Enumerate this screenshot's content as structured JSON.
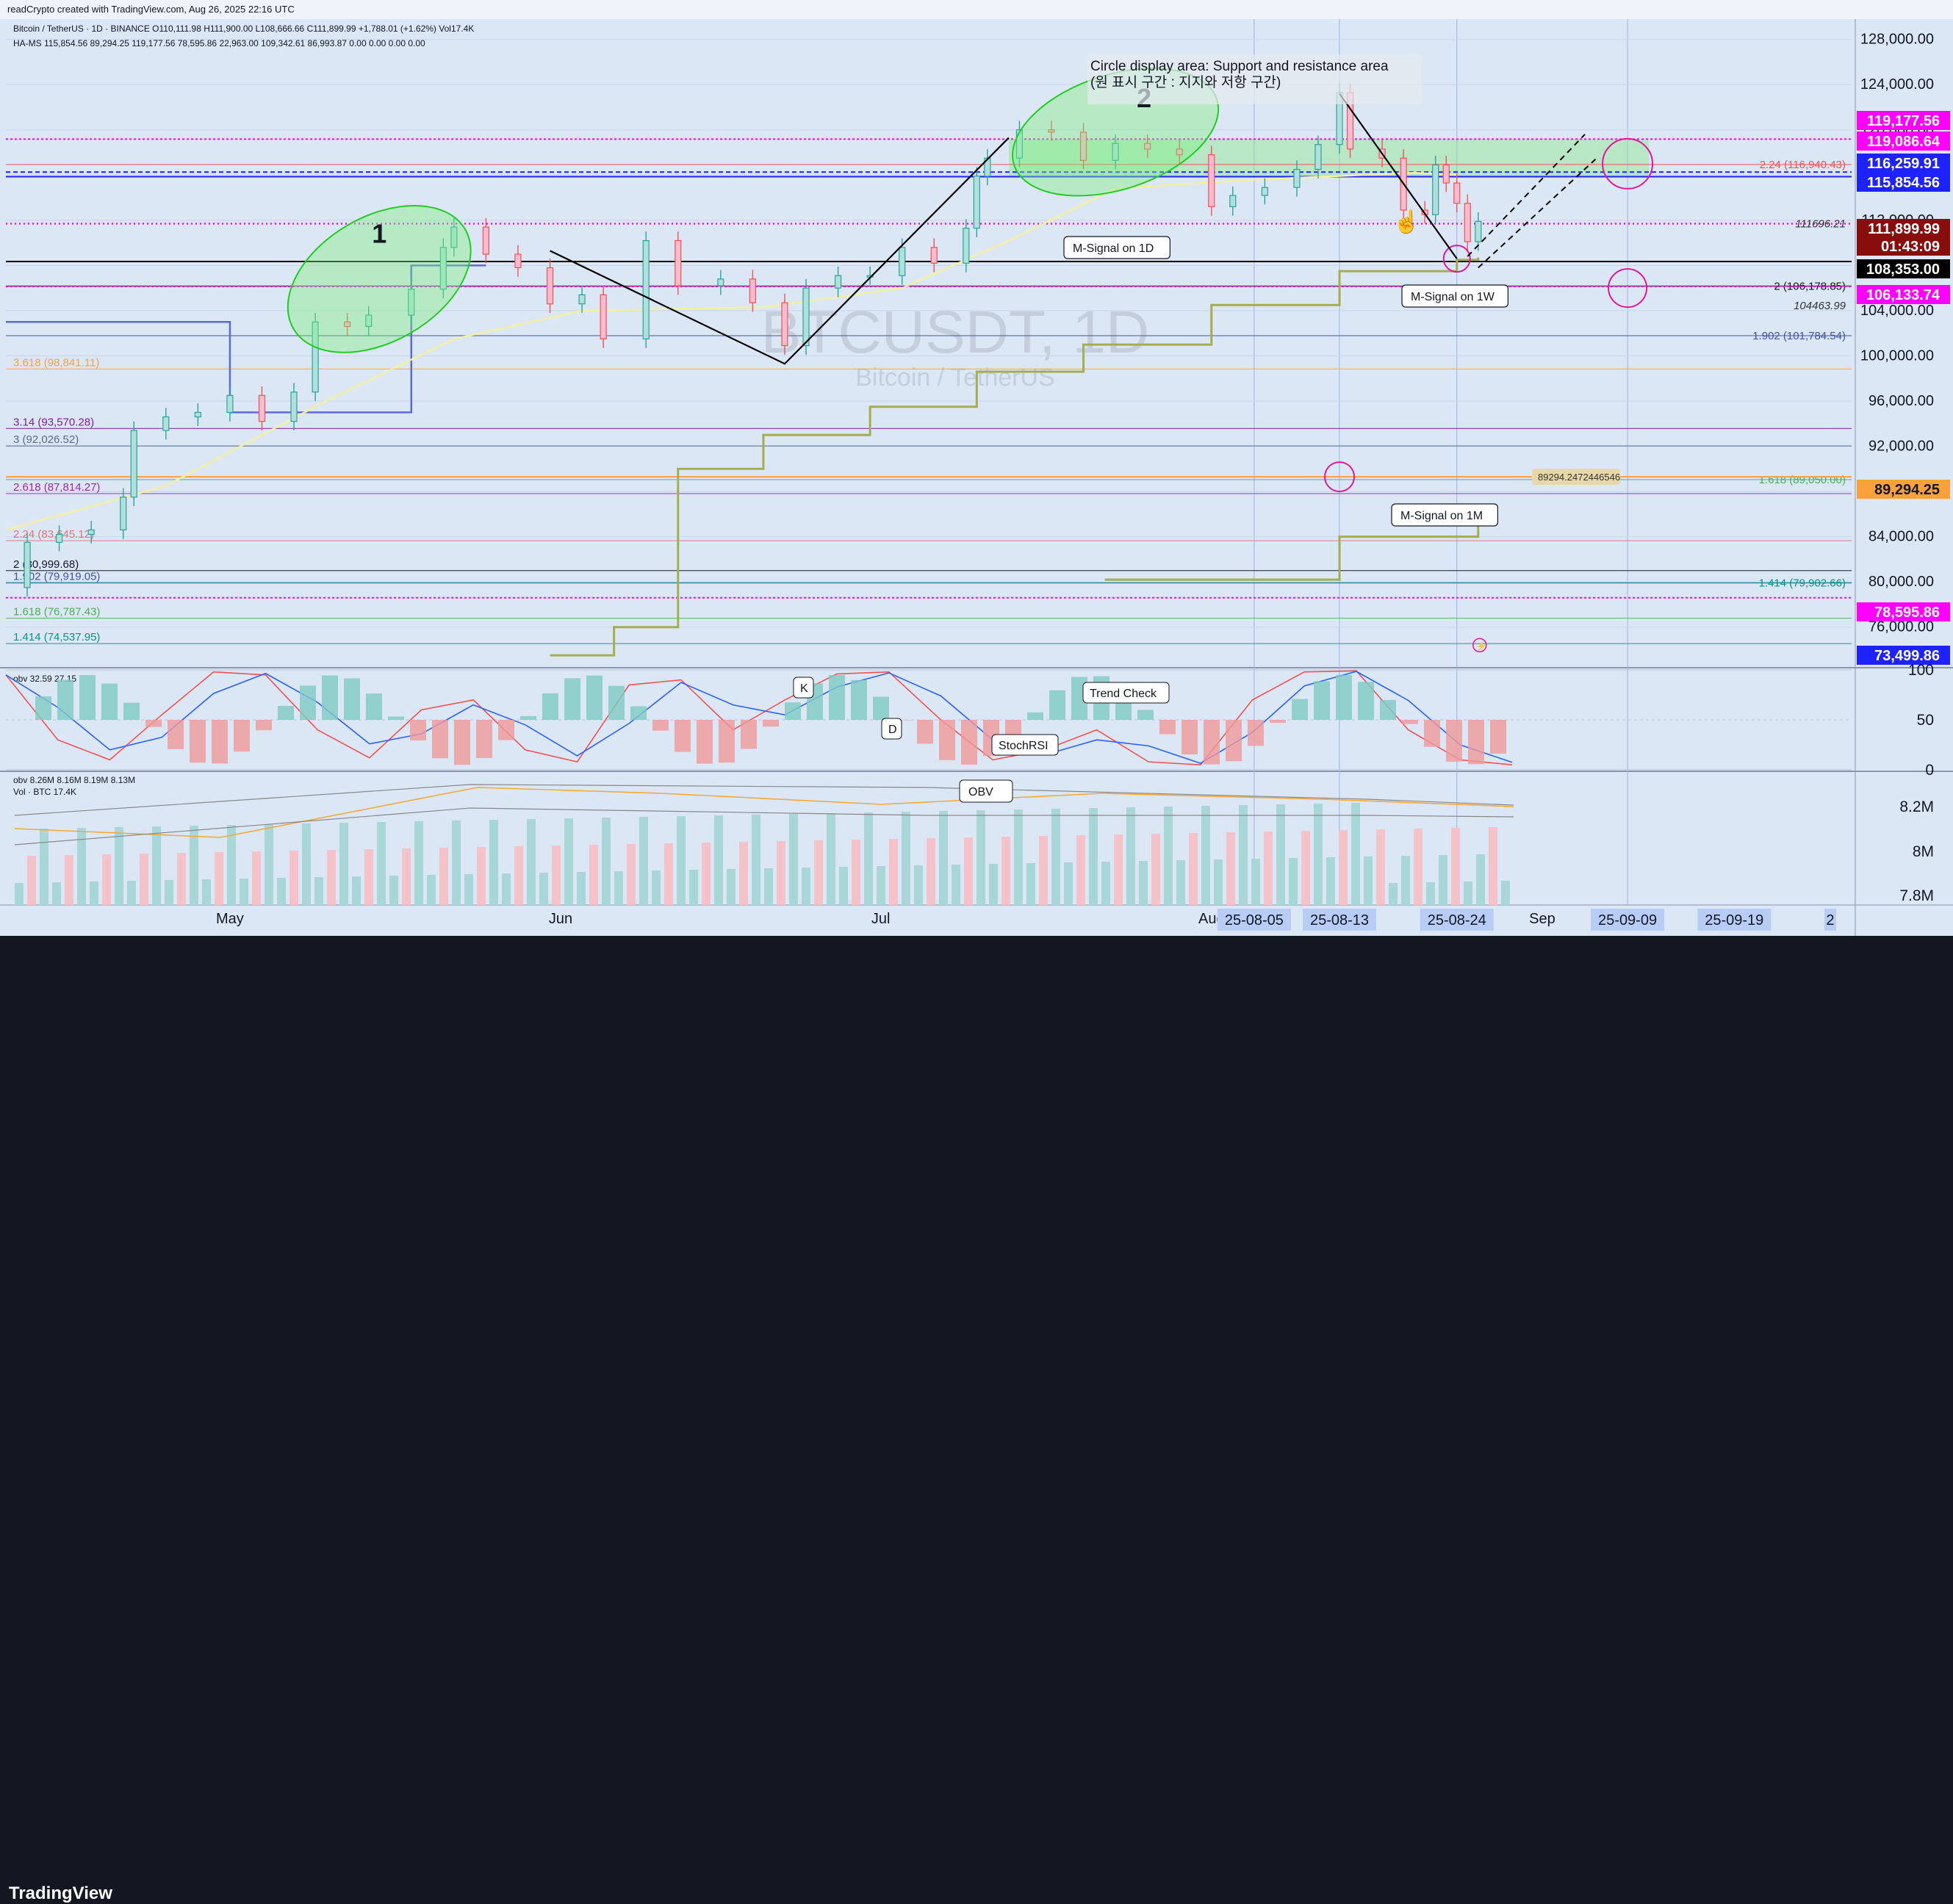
{
  "header": {
    "credit": "readCrypto created with TradingView.com, Aug 26, 2025 22:16 UTC",
    "ohlc": "Bitcoin / TetherUS · 1D · BINANCE O110,111.98 H111,900.00 L108,666.66 C111,899.99 +1,788.01 (+1.62%) Vol17.4K",
    "indicator": "HA-MS 115,854.56 89,294.25 119,177.56 78,595.86 22,963.00 109,342.61 86,993.87 0.00 0.00 0.00 0.00"
  },
  "brand": {
    "logo": "TradingView",
    "logo_icon": "tradingview-logo-icon"
  },
  "watermark": {
    "symbol": "BTCUSDT, 1D",
    "name": "Bitcoin / TetherUS"
  },
  "colors": {
    "up": "#26a69a",
    "down": "#ef5350",
    "magenta": "#ff00ff",
    "blue_tag": "#1e22ff",
    "dark_red": "#880e0e",
    "black": "#000000",
    "fib_orange": "#f9a23b",
    "olive": "#a5ad4e"
  },
  "annotations": {
    "circle_title_en": "Circle display area: Support and resistance area",
    "circle_title_ko": "(원 표시 구간 : 지지와 저항 구간)",
    "zone1": "1",
    "zone2": "2",
    "msignal_1d": "M-Signal on 1D",
    "msignal_1w": "M-Signal on 1W",
    "msignal_1m": "M-Signal on 1M",
    "level_111696": "111696.21",
    "level_104463": "104463.99",
    "level_89294": "89294.2472446546",
    "hand_icon": "pointing-hand-icon",
    "lightning_icon": "lightning-icon"
  },
  "fib_left": [
    {
      "label": "3.618 (98,841.11)",
      "value": 98841.11,
      "color": "#f9a23b"
    },
    {
      "label": "3.14 (93,570.28)",
      "value": 93570.28,
      "color": "#7b1fa2"
    },
    {
      "label": "3 (92,026.52)",
      "value": 92026.52,
      "color": "#5b6b8c"
    },
    {
      "label": "2.618 (87,814.27)",
      "value": 87814.27,
      "color": "#9c27b0"
    },
    {
      "label": "2.24 (83,645.12)",
      "value": 83645.12,
      "color": "#e57373"
    },
    {
      "label": "2 (80,999.68)",
      "value": 80999.68,
      "color": "#131722"
    },
    {
      "label": "1.902 (79,919.05)",
      "value": 79919.05,
      "color": "#3f51b5"
    },
    {
      "label": "1.618 (76,787.43)",
      "value": 76787.43,
      "color": "#4caf50"
    },
    {
      "label": "1.414 (74,537.95)",
      "value": 74537.95,
      "color": "#009688"
    }
  ],
  "fib_right": [
    {
      "label": "2.24 (116,940.43)",
      "value": 116940.43,
      "color": "#ef5350"
    },
    {
      "label": "2 (106,178.85)",
      "value": 106178.85,
      "color": "#131722"
    },
    {
      "label": "1.902 (101,784.54)",
      "value": 101784.54,
      "color": "#3f51b5"
    },
    {
      "label": "1.618 (89,050.00)",
      "value": 89050.0,
      "color": "#4caf50"
    },
    {
      "label": "1.414 (79,902.66)",
      "value": 79902.66,
      "color": "#009688"
    }
  ],
  "price_tags": [
    {
      "label": "119,177.56",
      "value": 119177.56,
      "bg": "#ff00ff",
      "fg": "#ffffff"
    },
    {
      "label": "119,086.64",
      "value": 119086.64,
      "bg": "#ff00ff",
      "fg": "#ffffff"
    },
    {
      "label": "116,259.91",
      "value": 116259.91,
      "bg": "#1e22ff",
      "fg": "#ffffff"
    },
    {
      "label": "115,854.56",
      "value": 115854.56,
      "bg": "#1e22ff",
      "fg": "#ffffff"
    },
    {
      "label": "111,899.99",
      "value": 111899.99,
      "bg": "#880e0e",
      "fg": "#ffffff"
    },
    {
      "label": "01:43:09",
      "value": null,
      "bg": "#880e0e",
      "fg": "#ffffff"
    },
    {
      "label": "108,353.00",
      "value": 108353.0,
      "bg": "#000000",
      "fg": "#ffffff"
    },
    {
      "label": "106,133.74",
      "value": 106133.74,
      "bg": "#ff00ff",
      "fg": "#ffffff"
    },
    {
      "label": "89,294.25",
      "value": 89294.25,
      "bg": "#f9a23b",
      "fg": "#131722"
    },
    {
      "label": "78,595.86",
      "value": 78595.86,
      "bg": "#ff00ff",
      "fg": "#ffffff"
    },
    {
      "label": "73,499.86",
      "value": 73499.86,
      "bg": "#1e22ff",
      "fg": "#ffffff"
    }
  ],
  "chart_data": [
    {
      "type": "candlestick",
      "title": "BTCUSDT, 1D",
      "y_ticks": [
        "128,000.00",
        "124,000.00",
        "120,000.00",
        "116,000.00",
        "112,000.00",
        "108,000.00",
        "104,000.00",
        "100,000.00",
        "96,000.00",
        "92,000.00",
        "88,000.00",
        "84,000.00",
        "80,000.00",
        "76,000.00"
      ],
      "y_tick_values": [
        128000,
        124000,
        120000,
        116000,
        112000,
        108000,
        104000,
        100000,
        96000,
        92000,
        88000,
        84000,
        80000,
        76000
      ],
      "ylim": [
        72600,
        129800
      ],
      "x_labels": [
        "May",
        "Jun",
        "Jul",
        "Aug",
        "Sep"
      ],
      "date_tags": [
        "25-08-05",
        "25-08-13",
        "25-08-24",
        "25-09-09",
        "25-09-19",
        "2"
      ],
      "days": [
        "2025-04-10",
        "2025-09-30"
      ],
      "closes": [
        [
          "2025-04-10",
          79500
        ],
        [
          "2025-04-12",
          83500
        ],
        [
          "2025-04-15",
          84200
        ],
        [
          "2025-04-18",
          84600
        ],
        [
          "2025-04-21",
          87500
        ],
        [
          "2025-04-22",
          93400
        ],
        [
          "2025-04-25",
          94600
        ],
        [
          "2025-04-28",
          95000
        ],
        [
          "2025-05-01",
          96500
        ],
        [
          "2025-05-04",
          94200
        ],
        [
          "2025-05-07",
          96800
        ],
        [
          "2025-05-09",
          103000
        ],
        [
          "2025-05-12",
          102600
        ],
        [
          "2025-05-14",
          103600
        ],
        [
          "2025-05-18",
          105900
        ],
        [
          "2025-05-21",
          109600
        ],
        [
          "2025-05-22",
          111400
        ],
        [
          "2025-05-25",
          109000
        ],
        [
          "2025-05-28",
          107800
        ],
        [
          "2025-05-31",
          104600
        ],
        [
          "2025-06-03",
          105400
        ],
        [
          "2025-06-05",
          101500
        ],
        [
          "2025-06-09",
          110200
        ],
        [
          "2025-06-12",
          106200
        ],
        [
          "2025-06-16",
          106800
        ],
        [
          "2025-06-19",
          104700
        ],
        [
          "2025-06-22",
          100900
        ],
        [
          "2025-06-24",
          106000
        ],
        [
          "2025-06-27",
          107100
        ],
        [
          "2025-06-30",
          107100
        ],
        [
          "2025-07-03",
          109600
        ],
        [
          "2025-07-06",
          108200
        ],
        [
          "2025-07-09",
          111300
        ],
        [
          "2025-07-10",
          115900
        ],
        [
          "2025-07-11",
          117500
        ],
        [
          "2025-07-14",
          120000
        ],
        [
          "2025-07-17",
          119800
        ],
        [
          "2025-07-20",
          117300
        ],
        [
          "2025-07-23",
          118800
        ],
        [
          "2025-07-26",
          118300
        ],
        [
          "2025-07-29",
          117800
        ],
        [
          "2025-08-01",
          113200
        ],
        [
          "2025-08-03",
          114200
        ],
        [
          "2025-08-06",
          114900
        ],
        [
          "2025-08-09",
          116500
        ],
        [
          "2025-08-11",
          118700
        ],
        [
          "2025-08-13",
          123300
        ],
        [
          "2025-08-14",
          118300
        ],
        [
          "2025-08-17",
          117500
        ],
        [
          "2025-08-19",
          112900
        ],
        [
          "2025-08-21",
          112500
        ],
        [
          "2025-08-22",
          116900
        ],
        [
          "2025-08-23",
          115300
        ],
        [
          "2025-08-24",
          113500
        ],
        [
          "2025-08-25",
          110100
        ],
        [
          "2025-08-26",
          111900
        ]
      ]
    },
    {
      "type": "line",
      "title": "StochRSI",
      "legend": "obv 32.59 27.15",
      "y_ticks": [
        "100",
        "50",
        "0"
      ],
      "y_tick_values": [
        100,
        50,
        0
      ],
      "labels": [
        "K",
        "D",
        "Trend Check",
        "StochRSI"
      ]
    },
    {
      "type": "bar",
      "title": "Vol · BTC",
      "legend_obv": "obv 8.26M 8.16M 8.19M 8.13M",
      "legend_vol": "Vol · BTC 17.4K",
      "y_ticks": [
        "8.2M",
        "8M",
        "7.8M"
      ],
      "y_tick_values": [
        8.2,
        8.0,
        7.8
      ],
      "labels": [
        "OBV"
      ]
    }
  ]
}
